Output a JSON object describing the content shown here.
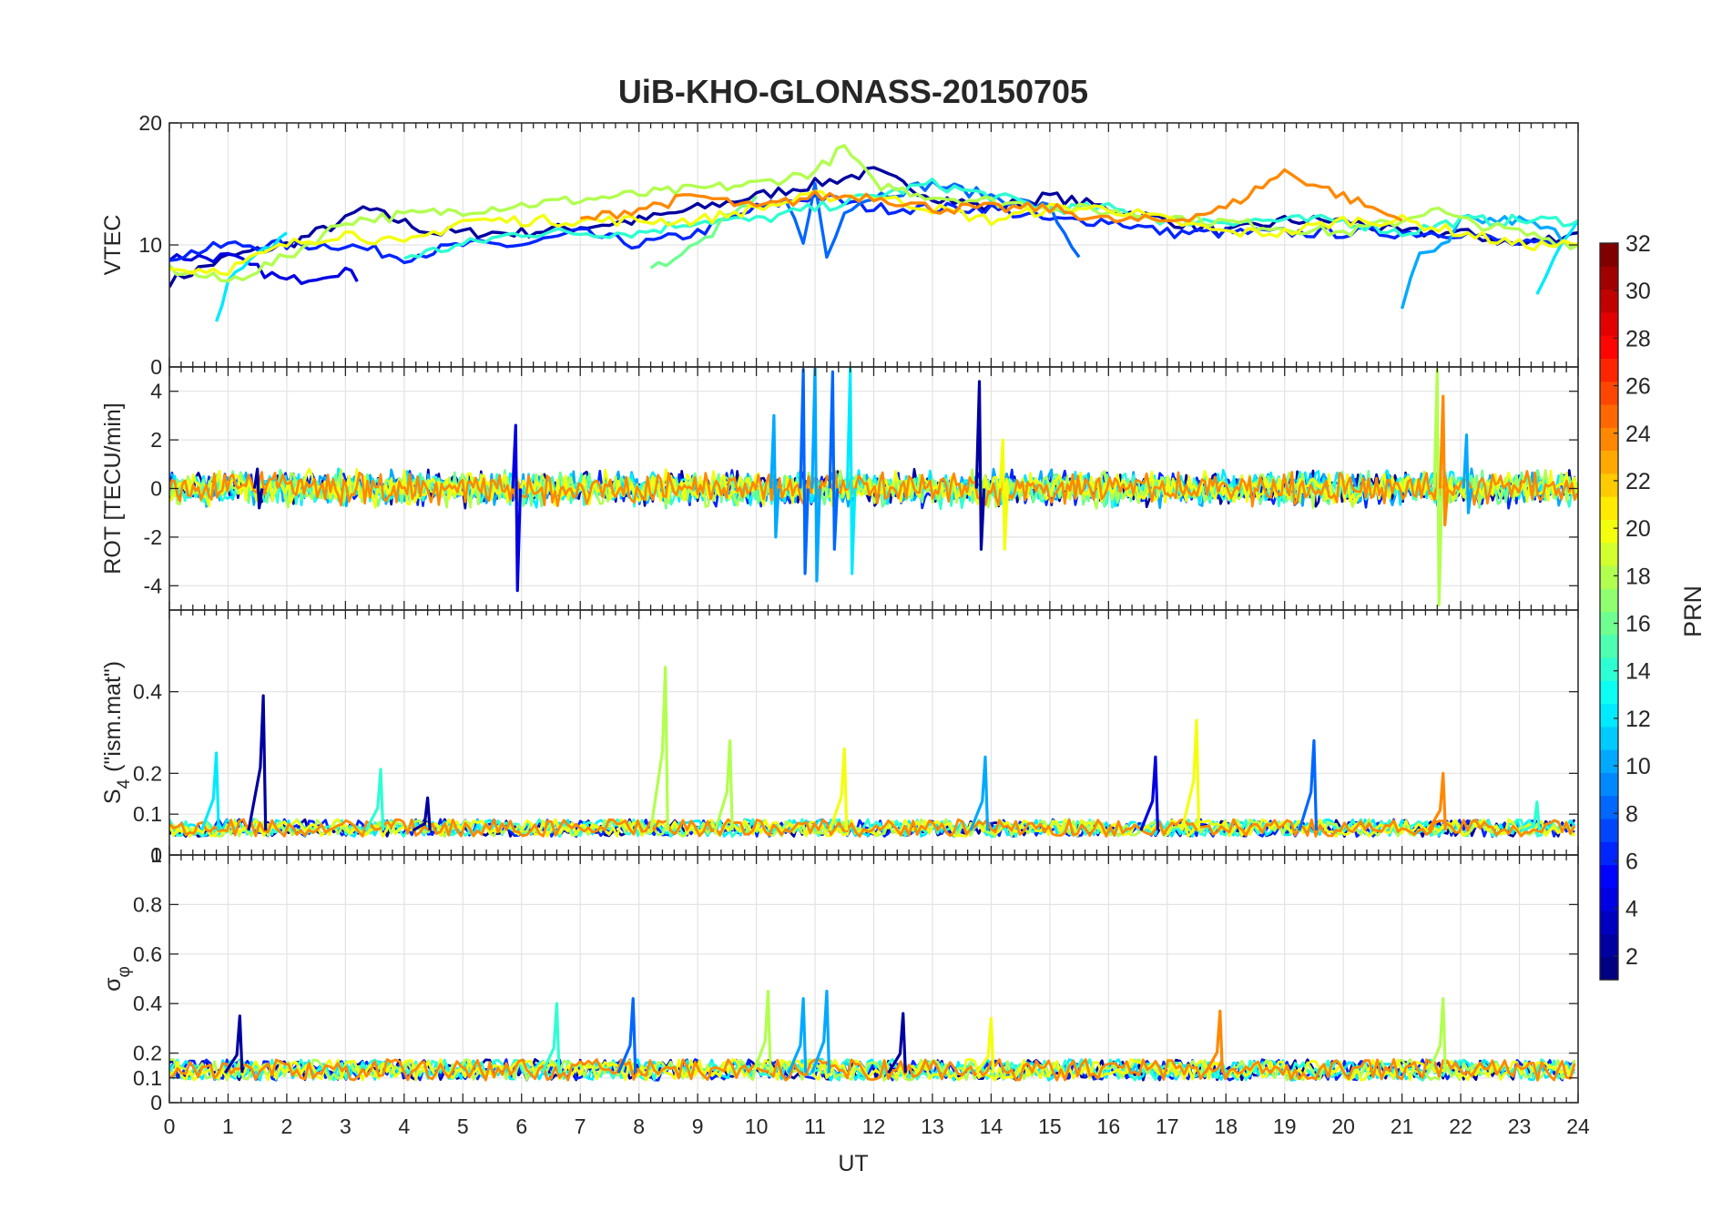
{
  "chart_data": {
    "type": "line",
    "title": "UiB-KHO-GLONASS-20150705",
    "xlabel": "UT",
    "xlim": [
      0,
      24
    ],
    "xticks": [
      0,
      1,
      2,
      3,
      4,
      5,
      6,
      7,
      8,
      9,
      10,
      11,
      12,
      13,
      14,
      15,
      16,
      17,
      18,
      19,
      20,
      21,
      22,
      23,
      24
    ],
    "grid": true,
    "panels": [
      {
        "id": "vtec",
        "ylabel": "VTEC",
        "ylim": [
          0,
          20
        ],
        "yticks": [
          10,
          20
        ],
        "series": [
          {
            "name": "PRN 2",
            "prn": 2,
            "x": [
              0,
              1,
              2,
              3,
              3.3,
              4.5,
              6,
              8,
              10,
              11,
              12,
              13,
              14,
              15,
              16,
              17,
              18,
              19,
              20,
              21,
              22,
              23,
              24
            ],
            "y": [
              7,
              9,
              10,
              12,
              13,
              11,
              11,
              12,
              14,
              15,
              16,
              14,
              13,
              14,
              13,
              12,
              11,
              12,
              12,
              11,
              11,
              10,
              11
            ]
          },
          {
            "name": "PRN 4",
            "prn": 4,
            "x": [
              0,
              1,
              2,
              3,
              3.2
            ],
            "y": [
              9,
              9,
              7,
              8,
              7
            ]
          },
          {
            "name": "PRN 6",
            "prn": 6,
            "x": [
              0,
              1,
              2,
              3,
              4,
              5,
              6,
              7,
              8,
              9,
              10,
              11,
              12,
              13,
              14,
              15,
              16,
              17,
              18,
              19,
              20,
              21,
              22,
              23,
              24
            ],
            "y": [
              9,
              10,
              10,
              10,
              9,
              10,
              10,
              11,
              10,
              11,
              13,
              14,
              13,
              13,
              13,
              12,
              12,
              11,
              11,
              11,
              11,
              11,
              11,
              10,
              10
            ]
          },
          {
            "name": "PRN 8",
            "prn": 8,
            "x": [
              10.5,
              10.8,
              11,
              11.2,
              11.5,
              12,
              13,
              14,
              15,
              15.5
            ],
            "y": [
              14,
              10,
              15,
              9,
              13,
              14,
              15,
              14,
              13,
              9
            ]
          },
          {
            "name": "PRN 10",
            "prn": 10,
            "x": [
              21,
              21.3,
              21.8,
              22,
              23,
              23.6,
              24
            ],
            "y": [
              5,
              9,
              10,
              12,
              12,
              11,
              10
            ]
          },
          {
            "name": "PRN 12",
            "prn": 12,
            "x": [
              0.8,
              1,
              1.5,
              2
            ],
            "y": [
              4,
              7,
              9,
              11
            ]
          },
          {
            "name": "PRN 12b",
            "prn": 12,
            "x": [
              23.3,
              23.6,
              24
            ],
            "y": [
              6,
              9,
              12
            ]
          },
          {
            "name": "PRN 14",
            "prn": 14,
            "x": [
              4,
              5,
              6,
              7,
              8,
              9,
              10,
              11,
              12,
              13,
              14,
              15,
              16,
              17,
              18,
              19,
              20,
              21,
              22,
              23,
              24
            ],
            "y": [
              9,
              10,
              11,
              11,
              11,
              12,
              12,
              13,
              14,
              15,
              14,
              13,
              13,
              12,
              12,
              12,
              12,
              11,
              12,
              12,
              12
            ]
          },
          {
            "name": "PRN 16",
            "prn": 16,
            "x": [
              8.2,
              9,
              9.5,
              10
            ],
            "y": [
              8,
              10,
              12,
              14
            ]
          },
          {
            "name": "PRN 18",
            "prn": 18,
            "x": [
              0,
              1,
              2,
              3,
              10,
              11,
              11.5,
              12,
              13,
              20,
              21,
              21.5,
              22,
              23,
              24
            ],
            "y": [
              8,
              7,
              9,
              12,
              15,
              16,
              18,
              15,
              14,
              11,
              12,
              13,
              12,
              11,
              10
            ]
          },
          {
            "name": "PRN 20",
            "prn": 20,
            "x": [
              0,
              1,
              2,
              3,
              4,
              5,
              6,
              7,
              8,
              9,
              10,
              11,
              12,
              13,
              14,
              15,
              16,
              17,
              18,
              19,
              20,
              21,
              22,
              23,
              24
            ],
            "y": [
              8,
              8,
              10,
              11,
              10,
              12,
              12,
              12,
              12,
              12,
              13,
              14,
              14,
              13,
              12,
              13,
              13,
              12,
              11,
              11,
              12,
              12,
              11,
              10,
              10
            ]
          },
          {
            "name": "PRN 24",
            "prn": 24,
            "x": [
              7,
              8,
              9,
              10,
              11,
              12,
              13,
              14,
              15,
              16,
              17,
              18,
              19,
              20,
              21
            ],
            "y": [
              12,
              13,
              14,
              13,
              14,
              14,
              13,
              13,
              13,
              12,
              12,
              13,
              16,
              14,
              12
            ]
          }
        ]
      },
      {
        "id": "rot",
        "ylabel": "ROT [TECU/min]",
        "ylim": [
          -5,
          5
        ],
        "yticks": [
          -4,
          -2,
          0,
          2,
          4
        ],
        "top_label": "0",
        "spikes": [
          {
            "prn": 2,
            "x": 1.5,
            "lo": -0.8,
            "hi": 0.8
          },
          {
            "prn": 4,
            "x": 5.9,
            "lo": -4.2,
            "hi": 2.6
          },
          {
            "prn": 10,
            "x": 10.3,
            "lo": -2.0,
            "hi": 3.0
          },
          {
            "prn": 8,
            "x": 10.8,
            "lo": -3.5,
            "hi": 4.9
          },
          {
            "prn": 10,
            "x": 11.0,
            "lo": -3.8,
            "hi": 5.0
          },
          {
            "prn": 8,
            "x": 11.3,
            "lo": -2.5,
            "hi": 4.8
          },
          {
            "prn": 12,
            "x": 11.6,
            "lo": -3.5,
            "hi": 5.0
          },
          {
            "prn": 2,
            "x": 13.8,
            "lo": -2.5,
            "hi": 4.4
          },
          {
            "prn": 20,
            "x": 14.2,
            "lo": -2.5,
            "hi": 2.0
          },
          {
            "prn": 18,
            "x": 21.6,
            "lo": -4.8,
            "hi": 4.9
          },
          {
            "prn": 24,
            "x": 21.7,
            "lo": -1.5,
            "hi": 3.8
          },
          {
            "prn": 10,
            "x": 22.1,
            "lo": -1.0,
            "hi": 2.2
          }
        ],
        "noise_amplitude": 0.6
      },
      {
        "id": "s4",
        "ylabel": "S4 (\"ism.mat\")",
        "ylabel_main": "S",
        "ylabel_sub": "4",
        "ylabel_rest": "(\"ism.mat\")",
        "ylim": [
          0,
          0.6
        ],
        "yticks": [
          0,
          0.1,
          0.2,
          0.4
        ],
        "bottom_label": "1",
        "peaks": [
          {
            "prn": 12,
            "x": 0.8,
            "y": 0.25
          },
          {
            "prn": 2,
            "x": 1.6,
            "y": 0.39
          },
          {
            "prn": 14,
            "x": 3.6,
            "y": 0.21
          },
          {
            "prn": 2,
            "x": 4.4,
            "y": 0.14
          },
          {
            "prn": 18,
            "x": 8.45,
            "y": 0.46
          },
          {
            "prn": 18,
            "x": 9.55,
            "y": 0.28
          },
          {
            "prn": 20,
            "x": 11.5,
            "y": 0.26
          },
          {
            "prn": 10,
            "x": 13.9,
            "y": 0.24
          },
          {
            "prn": 4,
            "x": 16.8,
            "y": 0.24
          },
          {
            "prn": 20,
            "x": 17.5,
            "y": 0.33
          },
          {
            "prn": 8,
            "x": 19.5,
            "y": 0.28
          },
          {
            "prn": 24,
            "x": 21.7,
            "y": 0.2
          },
          {
            "prn": 14,
            "x": 23.3,
            "y": 0.13
          }
        ],
        "baseline": 0.06
      },
      {
        "id": "sigma_phi",
        "ylabel": "σφ",
        "ylabel_main": "σ",
        "ylabel_sub": "φ",
        "ylim": [
          0,
          1
        ],
        "yticks": [
          0,
          0.1,
          0.2,
          0.4,
          0.6,
          0.8
        ],
        "peaks": [
          {
            "prn": 2,
            "x": 1.2,
            "y": 0.35
          },
          {
            "prn": 14,
            "x": 6.6,
            "y": 0.4
          },
          {
            "prn": 8,
            "x": 7.9,
            "y": 0.42
          },
          {
            "prn": 18,
            "x": 10.2,
            "y": 0.45
          },
          {
            "prn": 10,
            "x": 10.8,
            "y": 0.42
          },
          {
            "prn": 10,
            "x": 11.2,
            "y": 0.45
          },
          {
            "prn": 2,
            "x": 12.5,
            "y": 0.36
          },
          {
            "prn": 20,
            "x": 14.0,
            "y": 0.34
          },
          {
            "prn": 24,
            "x": 17.9,
            "y": 0.37
          },
          {
            "prn": 18,
            "x": 21.7,
            "y": 0.42
          }
        ],
        "baseline": 0.12
      }
    ],
    "colorbar": {
      "label": "PRN",
      "colormap": "jet",
      "range": [
        1,
        32
      ],
      "ticks": [
        2,
        4,
        6,
        8,
        10,
        12,
        14,
        16,
        18,
        20,
        22,
        24,
        26,
        28,
        30,
        32
      ]
    }
  }
}
